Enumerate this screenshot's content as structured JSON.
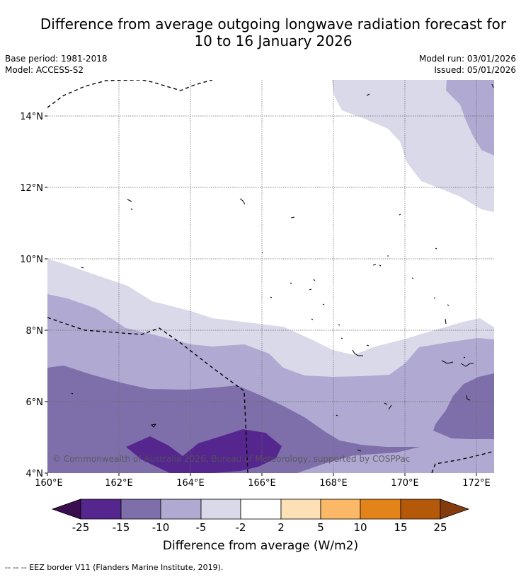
{
  "title": {
    "line1": "Difference from average outgoing longwave radiation forecast for",
    "line2": "10 to 16 January 2026"
  },
  "meta": {
    "base_period": "Base period: 1981-2018",
    "model": "Model: ACCESS-S2",
    "model_run": "Model run: 03/01/2026",
    "issued": "Issued: 05/01/2026"
  },
  "map": {
    "lat_labels": [
      "14°N",
      "12°N",
      "10°N",
      "8°N",
      "6°N",
      "4°N"
    ],
    "lon_labels": [
      "160°E",
      "162°E",
      "164°E",
      "166°E",
      "168°E",
      "170°E",
      "172°E"
    ],
    "copyright": "© Commonwealth of Australia 2026, Bureau of Meteorology, supported by COSPPac"
  },
  "colorbar": {
    "ticks": [
      "-25",
      "-15",
      "-10",
      "-5",
      "-2",
      "2",
      "5",
      "10",
      "15",
      "25"
    ],
    "colors": [
      "#3b0f4f",
      "#56268f",
      "#7e6fab",
      "#b0a9d2",
      "#d9d9ea",
      "#ffffff",
      "#fde0b6",
      "#fbb866",
      "#e2841a",
      "#b4580a",
      "#843c0f"
    ],
    "caption": "Difference from average (W/m2)"
  },
  "footnote": "--  --  -- EEZ border V11 (Flanders Marine Institute, 2019).",
  "palette": {
    "lightest": "#d9d9ea",
    "light": "#b0a9d2",
    "medium": "#7e6fab",
    "dark": "#56268f"
  }
}
